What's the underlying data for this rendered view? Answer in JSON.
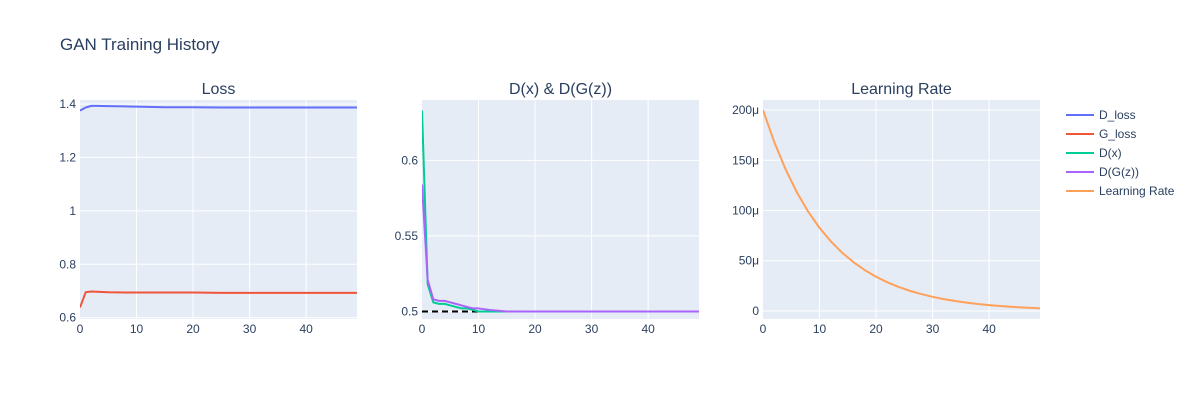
{
  "figure": {
    "title": "GAN Training History",
    "background": "#ffffff",
    "plot_background": "#e5ecf6",
    "grid_color": "#ffffff"
  },
  "legend": {
    "placement": "right",
    "entries": [
      {
        "name": "D_loss",
        "color": "#636efa"
      },
      {
        "name": "G_loss",
        "color": "#ef553b"
      },
      {
        "name": "D(x)",
        "color": "#00cc96"
      },
      {
        "name": "D(G(z))",
        "color": "#ab63fa"
      },
      {
        "name": "Learning Rate",
        "color": "#ffa15a"
      }
    ]
  },
  "chart_data": [
    {
      "type": "line",
      "title": "Loss",
      "xlim": [
        0,
        49
      ],
      "ylim": [
        0.595,
        1.415
      ],
      "x_ticks": [
        0,
        10,
        20,
        30,
        40
      ],
      "x_tick_labels": [
        "0",
        "10",
        "20",
        "30",
        "40"
      ],
      "y_ticks": [
        0.6,
        0.8,
        1.0,
        1.2,
        1.4
      ],
      "y_tick_labels": [
        "0.6",
        "0.8",
        "1",
        "1.2",
        "1.4"
      ],
      "series": [
        {
          "name": "D_loss",
          "color": "#636efa",
          "x": [
            0,
            1,
            2,
            3,
            5,
            8,
            10,
            15,
            20,
            25,
            30,
            35,
            40,
            45,
            49
          ],
          "y": [
            1.375,
            1.387,
            1.393,
            1.393,
            1.392,
            1.391,
            1.39,
            1.388,
            1.388,
            1.387,
            1.387,
            1.387,
            1.387,
            1.387,
            1.387
          ]
        },
        {
          "name": "G_loss",
          "color": "#ef553b",
          "x": [
            0,
            1,
            2,
            3,
            5,
            8,
            10,
            15,
            20,
            25,
            30,
            35,
            40,
            45,
            49
          ],
          "y": [
            0.638,
            0.695,
            0.698,
            0.697,
            0.695,
            0.694,
            0.694,
            0.694,
            0.694,
            0.693,
            0.693,
            0.693,
            0.693,
            0.693,
            0.693
          ]
        }
      ]
    },
    {
      "type": "line",
      "title": "D(x) & D(G(z))",
      "xlim": [
        0,
        49
      ],
      "ylim": [
        0.495,
        0.64
      ],
      "x_ticks": [
        0,
        10,
        20,
        30,
        40
      ],
      "x_tick_labels": [
        "0",
        "10",
        "20",
        "30",
        "40"
      ],
      "y_ticks": [
        0.5,
        0.55,
        0.6
      ],
      "y_tick_labels": [
        "0.5",
        "0.55",
        "0.6"
      ],
      "reference_line": {
        "y": 0.5,
        "color": "#000000",
        "dash": "dashed"
      },
      "series": [
        {
          "name": "D(x)",
          "color": "#00cc96",
          "x": [
            0,
            1,
            2,
            3,
            4,
            5,
            6,
            7,
            8,
            9,
            10,
            12,
            15,
            20,
            30,
            40,
            49
          ],
          "y": [
            0.633,
            0.518,
            0.506,
            0.505,
            0.505,
            0.504,
            0.503,
            0.502,
            0.502,
            0.501,
            0.5,
            0.5,
            0.5,
            0.5,
            0.5,
            0.5,
            0.5
          ]
        },
        {
          "name": "D(G(z))",
          "color": "#ab63fa",
          "x": [
            0,
            1,
            2,
            3,
            4,
            5,
            6,
            7,
            8,
            9,
            10,
            12,
            15,
            20,
            30,
            40,
            49
          ],
          "y": [
            0.584,
            0.521,
            0.508,
            0.507,
            0.507,
            0.506,
            0.505,
            0.504,
            0.503,
            0.502,
            0.502,
            0.501,
            0.5,
            0.5,
            0.5,
            0.5,
            0.5
          ]
        }
      ]
    },
    {
      "type": "line",
      "title": "Learning Rate",
      "xlim": [
        0,
        49
      ],
      "ylim": [
        -8e-06,
        0.00021
      ],
      "x_ticks": [
        0,
        10,
        20,
        30,
        40
      ],
      "x_tick_labels": [
        "0",
        "10",
        "20",
        "30",
        "40"
      ],
      "y_ticks": [
        0,
        5e-05,
        0.0001,
        0.00015,
        0.0002
      ],
      "y_tick_labels": [
        "0",
        "50μ",
        "100μ",
        "150μ",
        "200μ"
      ],
      "series": [
        {
          "name": "Learning Rate",
          "color": "#ffa15a",
          "x": [
            0,
            2,
            4,
            6,
            8,
            10,
            12,
            14,
            16,
            18,
            20,
            22,
            24,
            26,
            28,
            30,
            32,
            34,
            36,
            38,
            40,
            42,
            44,
            46,
            48,
            49
          ],
          "y": [
            0.0002,
            0.000168,
            0.000141,
            0.000118,
            9.88e-05,
            8.27e-05,
            6.93e-05,
            5.8e-05,
            4.86e-05,
            4.07e-05,
            3.41e-05,
            2.85e-05,
            2.39e-05,
            2e-05,
            1.68e-05,
            1.41e-05,
            1.18e-05,
            9.9e-06,
            8.3e-06,
            6.9e-06,
            5.8e-06,
            4.9e-06,
            4.1e-06,
            3.4e-06,
            2.9e-06,
            2.6e-06
          ]
        }
      ]
    }
  ]
}
